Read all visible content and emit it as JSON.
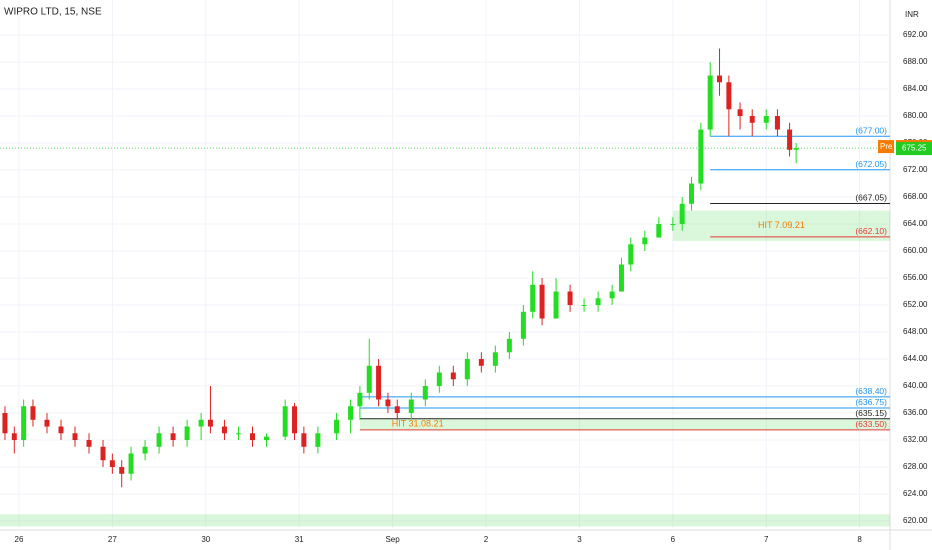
{
  "chart_data": {
    "type": "candlestick",
    "title": "WIPRO LTD, 15, NSE",
    "currency": "INR",
    "up_color": "#22dd22",
    "down_color": "#dd2222",
    "grid": true,
    "x": [
      -0.15,
      -0.05,
      0.05,
      0.15,
      0.3,
      0.45,
      0.6,
      0.75,
      0.9,
      1.0,
      1.1,
      1.2,
      1.35,
      1.5,
      1.65,
      1.8,
      1.95,
      2.05,
      2.2,
      2.35,
      2.5,
      2.65,
      2.85,
      2.95,
      3.05,
      3.2,
      3.4,
      3.55,
      3.65,
      3.75,
      3.85,
      3.95,
      4.05,
      4.2,
      4.35,
      4.5,
      4.65,
      4.8,
      4.95,
      5.1,
      5.25,
      5.4,
      5.5,
      5.6,
      5.75,
      5.9,
      6.05,
      6.2,
      6.35,
      6.45,
      6.55,
      6.7,
      6.85,
      7.0,
      7.1,
      7.2,
      7.3,
      7.4,
      7.5,
      7.6,
      7.72,
      7.85,
      8.0,
      8.12,
      8.25,
      8.32
    ],
    "open": [
      636,
      633,
      632,
      637,
      635,
      634,
      633,
      632,
      631,
      629,
      628,
      627,
      630,
      631,
      633,
      632,
      634,
      635,
      634,
      633,
      633,
      632,
      632.5,
      637,
      633,
      631,
      633,
      635,
      637,
      639,
      643,
      638,
      637,
      636,
      638,
      640,
      642,
      641,
      644,
      643,
      645,
      647,
      651,
      655,
      650,
      654,
      652,
      652,
      653,
      654,
      658,
      661,
      662,
      664,
      664,
      667,
      670,
      678,
      686,
      685,
      681,
      680,
      679,
      680,
      678,
      675
    ],
    "high": [
      637,
      634,
      638,
      638,
      636,
      635,
      634,
      633,
      632,
      630,
      629,
      631,
      632,
      634,
      634,
      635,
      636,
      640,
      635,
      634,
      634,
      633,
      638,
      637.5,
      634,
      634,
      636,
      638,
      640,
      647,
      644,
      639,
      638,
      639,
      641,
      643,
      643,
      645,
      645,
      646,
      648,
      652,
      657,
      656,
      656,
      655,
      653,
      654,
      655,
      659,
      662,
      663,
      665,
      665,
      668,
      671,
      679,
      688,
      690,
      686,
      682,
      681,
      681,
      681,
      679,
      676
    ],
    "low": [
      632,
      630,
      631,
      634,
      633,
      632,
      631,
      630,
      628,
      627,
      625,
      626,
      629,
      630,
      631,
      631,
      632,
      633,
      632,
      632,
      631,
      631,
      632,
      632,
      630,
      630,
      632,
      633,
      635,
      638,
      637,
      636,
      635,
      635,
      637,
      639,
      640,
      640,
      642,
      642,
      644,
      646,
      650,
      649,
      650,
      651,
      651,
      651,
      652,
      654,
      657,
      660,
      662,
      663,
      663,
      666,
      669,
      677,
      683,
      677,
      678,
      677,
      678,
      677,
      674,
      673
    ],
    "close": [
      633,
      632,
      637,
      635,
      634,
      633,
      632,
      631,
      629,
      628,
      627,
      630,
      631,
      633,
      632,
      634,
      635,
      634,
      633,
      633,
      632,
      632.5,
      637,
      633,
      631,
      633,
      635,
      637,
      639,
      643,
      638,
      637,
      636,
      638,
      640,
      642,
      641,
      644,
      643,
      645,
      647,
      651,
      655,
      650,
      654,
      652,
      652,
      653,
      654,
      658,
      661,
      662,
      664,
      664,
      667,
      670,
      678,
      686,
      685,
      681,
      680,
      679,
      680,
      678,
      675,
      675.25
    ],
    "xlim": [
      -0.203,
      9.325
    ],
    "xticks": [
      {
        "value": 0,
        "label": "26"
      },
      {
        "value": 1,
        "label": "27"
      },
      {
        "value": 2,
        "label": "30"
      },
      {
        "value": 3,
        "label": "31"
      },
      {
        "value": 4,
        "label": "Sep"
      },
      {
        "value": 5,
        "label": "2"
      },
      {
        "value": 6,
        "label": "3"
      },
      {
        "value": 7,
        "label": "6"
      },
      {
        "value": 8,
        "label": "7"
      },
      {
        "value": 9,
        "label": "8"
      }
    ],
    "ylim": [
      618.67,
      697.19
    ],
    "yticks": [
      {
        "value": 620,
        "label": "620.00"
      },
      {
        "value": 624,
        "label": "624.00"
      },
      {
        "value": 628,
        "label": "628.00"
      },
      {
        "value": 632,
        "label": "632.00"
      },
      {
        "value": 636,
        "label": "636.00"
      },
      {
        "value": 640,
        "label": "640.00"
      },
      {
        "value": 644,
        "label": "644.00"
      },
      {
        "value": 648,
        "label": "648.00"
      },
      {
        "value": 652,
        "label": "652.00"
      },
      {
        "value": 656,
        "label": "656.00"
      },
      {
        "value": 660,
        "label": "660.00"
      },
      {
        "value": 664,
        "label": "664.00"
      },
      {
        "value": 668,
        "label": "668.00"
      },
      {
        "value": 672,
        "label": "672.00"
      },
      {
        "value": 676,
        "label": "676.00"
      },
      {
        "value": 680,
        "label": "680.00"
      },
      {
        "value": 684,
        "label": "684.00"
      },
      {
        "value": 688,
        "label": "688.00"
      },
      {
        "value": 692,
        "label": "692.00"
      }
    ],
    "levels": [
      {
        "value": 677.0,
        "label": "(677.00)",
        "color": "#2196f3",
        "from": 7.4
      },
      {
        "value": 672.05,
        "label": "(672.05)",
        "color": "#2196f3",
        "from": 7.4
      },
      {
        "value": 667.05,
        "label": "(667.05)",
        "color": "#222222",
        "from": 7.4
      },
      {
        "value": 662.1,
        "label": "(662.10)",
        "color": "#e53935",
        "from": 7.4
      },
      {
        "value": 638.4,
        "label": "(638.40)",
        "color": "#2196f3",
        "from": 3.65
      },
      {
        "value": 636.75,
        "label": "(636.75)",
        "color": "#2196f3",
        "from": 3.65
      },
      {
        "value": 635.15,
        "label": "(635.15)",
        "color": "#222222",
        "from": 3.65
      },
      {
        "value": 633.5,
        "label": "(633.50)",
        "color": "#e53935",
        "from": 3.65
      }
    ],
    "zones": [
      {
        "label": "HIT 7.09.21",
        "low": 661.5,
        "high": 666,
        "from": 7.0
      },
      {
        "label": "HIT 31.08.21",
        "low": 633.5,
        "high": 635.15,
        "from": 3.65
      },
      {
        "low": 619.2,
        "high": 621,
        "from": -0.203
      }
    ],
    "last_price": {
      "value": 675.25,
      "label": "675.25",
      "color": "#22cc22"
    },
    "pre_price": {
      "name": "Pre",
      "value": 675.4,
      "label": "675.40",
      "color": "#f57c00"
    }
  }
}
